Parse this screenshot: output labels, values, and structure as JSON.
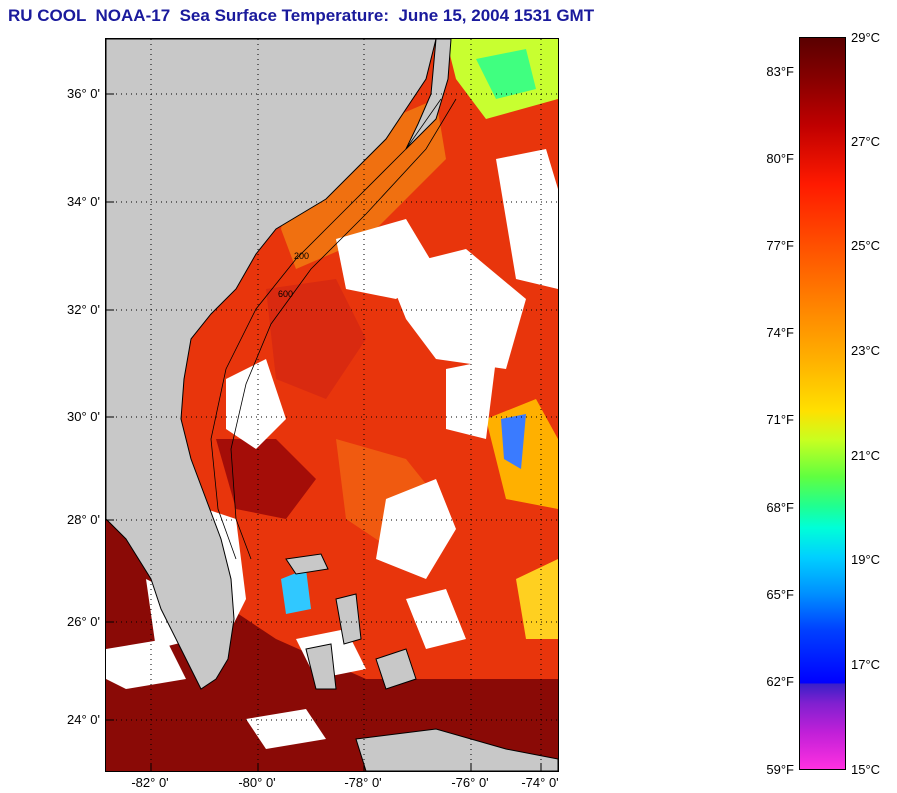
{
  "title": "RU COOL  NOAA-17  Sea Surface Temperature:  June 15, 2004 1531 GMT",
  "map": {
    "lat_labels": [
      "36° 0'",
      "34° 0'",
      "32° 0'",
      "30° 0'",
      "28° 0'",
      "26° 0'",
      "24° 0'"
    ],
    "lon_labels": [
      "-82° 0'",
      "-80° 0'",
      "-78° 0'",
      "-76° 0'",
      "-74° 0'"
    ],
    "isobath_labels": [
      "200",
      "600"
    ],
    "colors": {
      "land": "#c8c8c8",
      "cloud": "#ffffff",
      "coast": "#000000"
    }
  },
  "colorbar": {
    "fahrenheit": [
      "83°F",
      "80°F",
      "77°F",
      "74°F",
      "71°F",
      "68°F",
      "65°F",
      "62°F",
      "59°F"
    ],
    "celsius": [
      "29°C",
      "27°C",
      "25°C",
      "23°C",
      "21°C",
      "19°C",
      "17°C",
      "15°C"
    ]
  }
}
